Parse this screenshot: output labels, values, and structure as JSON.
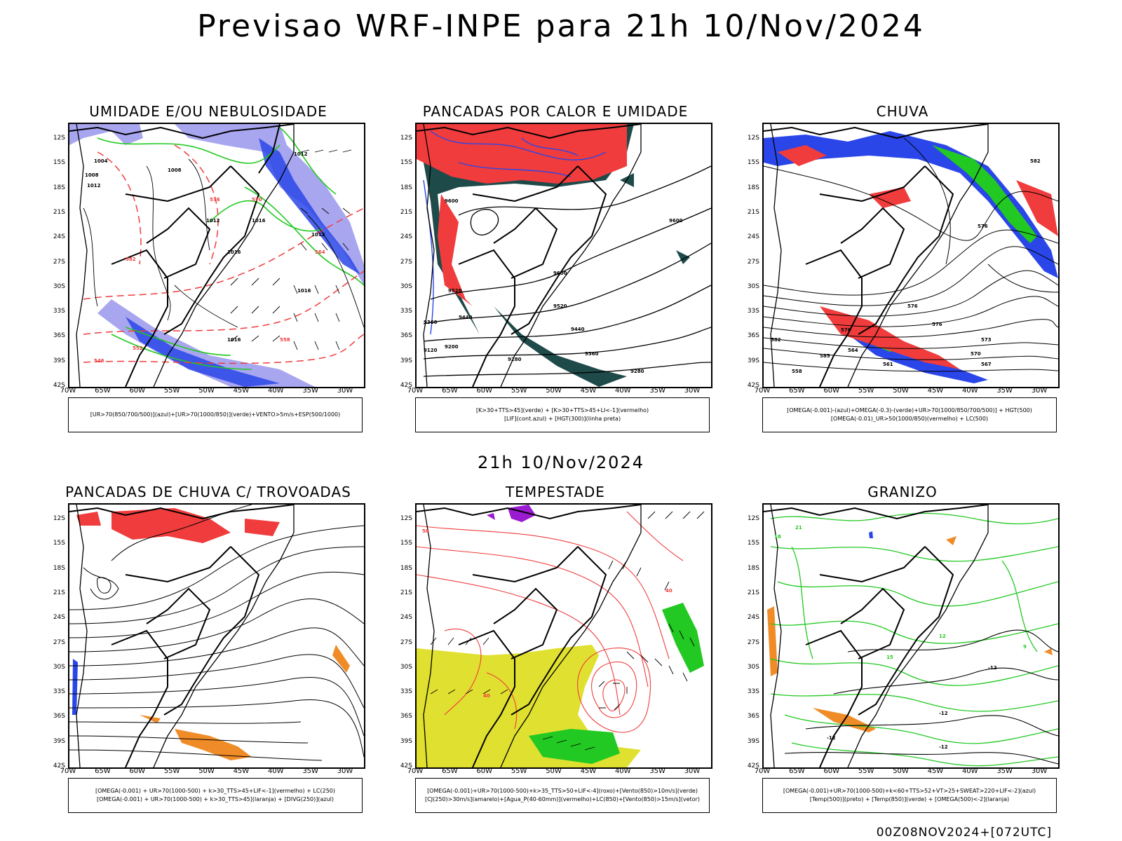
{
  "title": "Previsao WRF-INPE  para 21h 10/Nov/2024",
  "subtitle": "21h 10/Nov/2024",
  "footer": "00Z08NOV2024+[072UTC]",
  "lat_labels": [
    "12S",
    "15S",
    "18S",
    "21S",
    "24S",
    "27S",
    "30S",
    "33S",
    "36S",
    "39S",
    "42S"
  ],
  "lon_labels": [
    "70W",
    "65W",
    "60W",
    "55W",
    "50W",
    "45W",
    "40W",
    "35W",
    "30W"
  ],
  "colors": {
    "red": "#f03c3c",
    "blue": "#2a46e8",
    "lightblue": "#a9a6f0",
    "green": "#22c922",
    "darkteal": "#1f4a4a",
    "yellow": "#e0e030",
    "orange": "#f08c28",
    "purple": "#9a1bd0"
  },
  "panels": [
    {
      "title": "UMIDADE E/OU NEBULOSIDADE",
      "legend": [
        "[UR>70(850/700/500)](azul)+[UR>70(1000/850)](verde)+VENTO>5m/s+ESP(500/1000)"
      ],
      "labels": [
        "1004",
        "1008",
        "1008",
        "1012",
        "1012",
        "1012",
        "1016",
        "1016",
        "1016",
        "1016",
        "1012",
        "570",
        "576",
        "582",
        "564",
        "558",
        "552",
        "546"
      ]
    },
    {
      "title": "PANCADAS POR CALOR E UMIDADE",
      "legend": [
        "[K>30+TTS>45](verde) + [K>30+TTS>45+LI<-1](vermelho)",
        "[LIF](cont.azul) + [HGT(300)](linha preta)"
      ],
      "labels": [
        "9600",
        "9600",
        "9600",
        "9520",
        "9520",
        "9440",
        "9440",
        "9360",
        "9360",
        "9280",
        "9280",
        "9200",
        "9120"
      ]
    },
    {
      "title": "CHUVA",
      "legend": [
        "[OMEGA(-0.001)-(azul)+OMEGA(-0.3)-(verde)+UR>70(1000/850/700/500)] + HGT(500)",
        "[OMEGA(-0.01)_UR>50(1000/850)(vermelho) + LC(500)"
      ],
      "labels": [
        "582",
        "576",
        "576",
        "576",
        "576",
        "573",
        "570",
        "567",
        "564",
        "561",
        "558",
        "582",
        "585"
      ]
    },
    {
      "title": "PANCADAS DE CHUVA C/ TROVOADAS",
      "legend": [
        "[OMEGA(-0.001) + UR>70(1000-500) + k>30_TTS>45+LIF<-1](vermelho) + LC(250)",
        "[OMEGA(-0.001) + UR>70(1000-500) + k>30_TTS>45](laranja) + [DIVG(250)](azul)"
      ],
      "labels": []
    },
    {
      "title": "TEMPESTADE",
      "legend": [
        "[OMEGA(-0.001)+UR>70(1000-500)+k>35_TTS>50+LIF<-4](roxo)+[Vento(850)>10m/s](verde)",
        "[CJ(250)>30m/s](amarelo)+[Agua_P(40-60mm)](vermelho)+LC(850)+[Vento(850)>15m/s](vetor)"
      ],
      "labels": [
        "50",
        "40",
        "40"
      ]
    },
    {
      "title": "GRANIZO",
      "legend": [
        "[OMEGA(-0.001)+UR>70(1000-500)+k<60+TTS>52+VT>25+SWEAT>220+LIF<-2](azul)",
        "[Temp(500)](preto) + [Temp(850)](verde) + [OMEGA(500)<-2](laranja)"
      ],
      "labels": [
        "-12",
        "-12",
        "-12",
        "-12",
        "15",
        "18",
        "21",
        "12",
        "9"
      ]
    }
  ]
}
